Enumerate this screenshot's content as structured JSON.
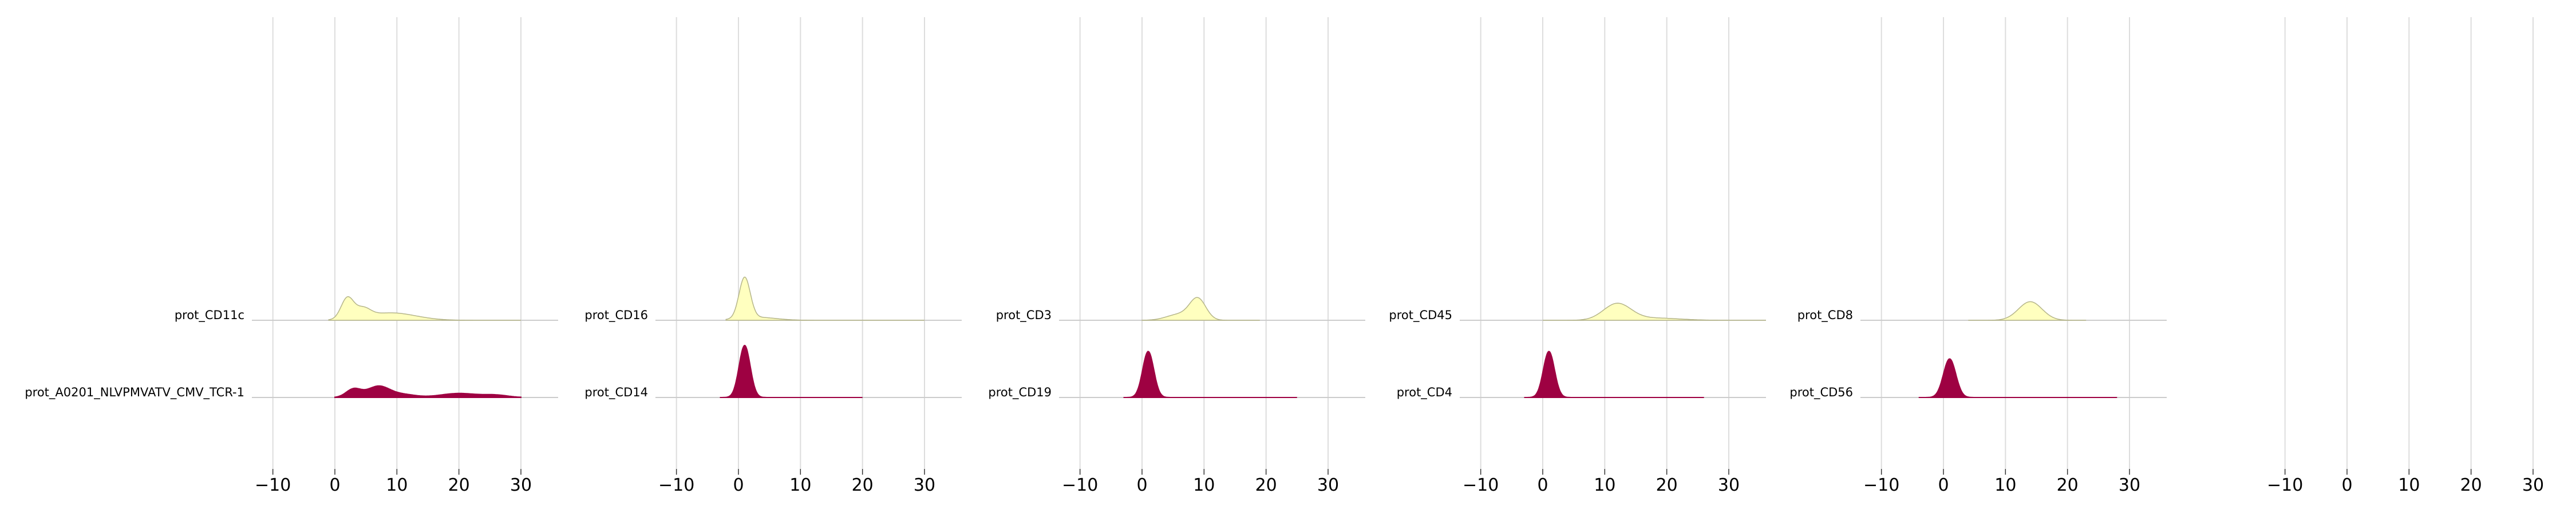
{
  "chart_data": {
    "type": "ridgeline",
    "xlim": [
      -12,
      36
    ],
    "xticks": [
      -10,
      0,
      10,
      20,
      30
    ],
    "xtick_labels": [
      "−10",
      "0",
      "10",
      "20",
      "30"
    ],
    "grid": true,
    "colors": {
      "upper": "#ffffbf",
      "lower": "#9e0142",
      "baseline": "#cccccc",
      "grid": "#dddddd"
    },
    "panels": [
      {
        "upper": {
          "name": "prot_CD11c",
          "range": [
            -1,
            30
          ],
          "peaks": [
            [
              2,
              0.28,
              1.0
            ],
            [
              4.5,
              0.12,
              1.2
            ],
            [
              9,
              0.1,
              4
            ]
          ]
        },
        "lower": {
          "name": "prot_A0201_NLVPMVATV_CMV_TCR-1",
          "range": [
            0,
            30
          ],
          "peaks": [
            [
              3,
              0.11,
              1.2
            ],
            [
              7,
              0.15,
              1.8
            ],
            [
              11,
              0.04,
              2
            ],
            [
              20,
              0.055,
              3
            ],
            [
              26,
              0.03,
              2
            ]
          ]
        }
      },
      {
        "upper": {
          "name": "prot_CD16",
          "range": [
            -2,
            30
          ],
          "peaks": [
            [
              1,
              0.55,
              0.9
            ],
            [
              3,
              0.04,
              3
            ]
          ]
        },
        "lower": {
          "name": "prot_CD14",
          "range": [
            -3,
            20
          ],
          "peaks": [
            [
              1,
              0.7,
              0.9
            ]
          ]
        }
      },
      {
        "upper": {
          "name": "prot_CD3",
          "range": [
            0,
            19
          ],
          "peaks": [
            [
              9,
              0.28,
              1.3
            ],
            [
              6,
              0.08,
              2
            ]
          ]
        },
        "lower": {
          "name": "prot_CD19",
          "range": [
            -3,
            25
          ],
          "peaks": [
            [
              1,
              0.62,
              0.9
            ]
          ]
        }
      },
      {
        "upper": {
          "name": "prot_CD45",
          "range": [
            0,
            36
          ],
          "peaks": [
            [
              12,
              0.22,
              2.2
            ],
            [
              18,
              0.03,
              4
            ]
          ]
        },
        "lower": {
          "name": "prot_CD4",
          "range": [
            -3,
            26
          ],
          "peaks": [
            [
              1,
              0.62,
              0.9
            ]
          ]
        }
      },
      {
        "upper": {
          "name": "prot_CD8",
          "range": [
            4,
            23
          ],
          "peaks": [
            [
              14,
              0.25,
              1.9
            ]
          ]
        },
        "lower": {
          "name": "prot_CD56",
          "range": [
            -4,
            28
          ],
          "peaks": [
            [
              1,
              0.52,
              1.0
            ]
          ]
        }
      },
      {}
    ]
  }
}
